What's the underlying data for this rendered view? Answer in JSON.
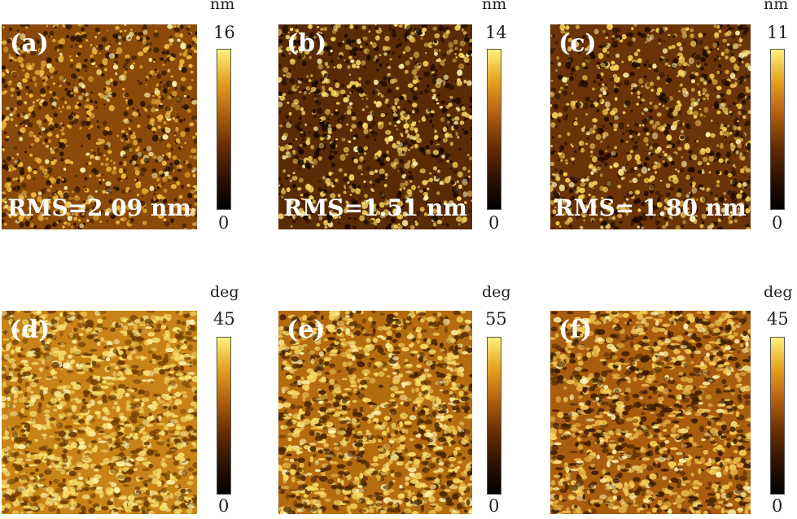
{
  "panels": [
    {
      "label": "(a)",
      "rms": "RMS=2.09 nm",
      "unit": "nm",
      "max": "16",
      "min": "0",
      "kind": "height",
      "colors": {
        "base": "#8a4a0a",
        "light": "#f4c040",
        "dark": "#2a1000"
      }
    },
    {
      "label": "(b)",
      "rms": "RMS=1.51 nm",
      "unit": "nm",
      "max": "14",
      "min": "0",
      "kind": "height",
      "colors": {
        "base": "#5a2c06",
        "light": "#f8d860",
        "dark": "#1a0800"
      }
    },
    {
      "label": "(c)",
      "rms": "RMS= 1.80 nm",
      "unit": "nm",
      "max": "11",
      "min": "0",
      "kind": "height",
      "colors": {
        "base": "#6a3408",
        "light": "#f8d458",
        "dark": "#1e0a00"
      }
    },
    {
      "label": "(d)",
      "rms": "",
      "unit": "deg",
      "max": "45",
      "min": "0",
      "kind": "phase",
      "colors": {
        "base": "#c88418",
        "light": "#f8e070",
        "dark": "#6a3a00"
      }
    },
    {
      "label": "(e)",
      "rms": "",
      "unit": "deg",
      "max": "55",
      "min": "0",
      "kind": "phase",
      "colors": {
        "base": "#b46c10",
        "light": "#f8dc68",
        "dark": "#4a2400"
      }
    },
    {
      "label": "(f)",
      "rms": "",
      "unit": "deg",
      "max": "45",
      "min": "0",
      "kind": "phase",
      "colors": {
        "base": "#a85e0e",
        "light": "#f4cc58",
        "dark": "#3e1c00"
      }
    }
  ]
}
